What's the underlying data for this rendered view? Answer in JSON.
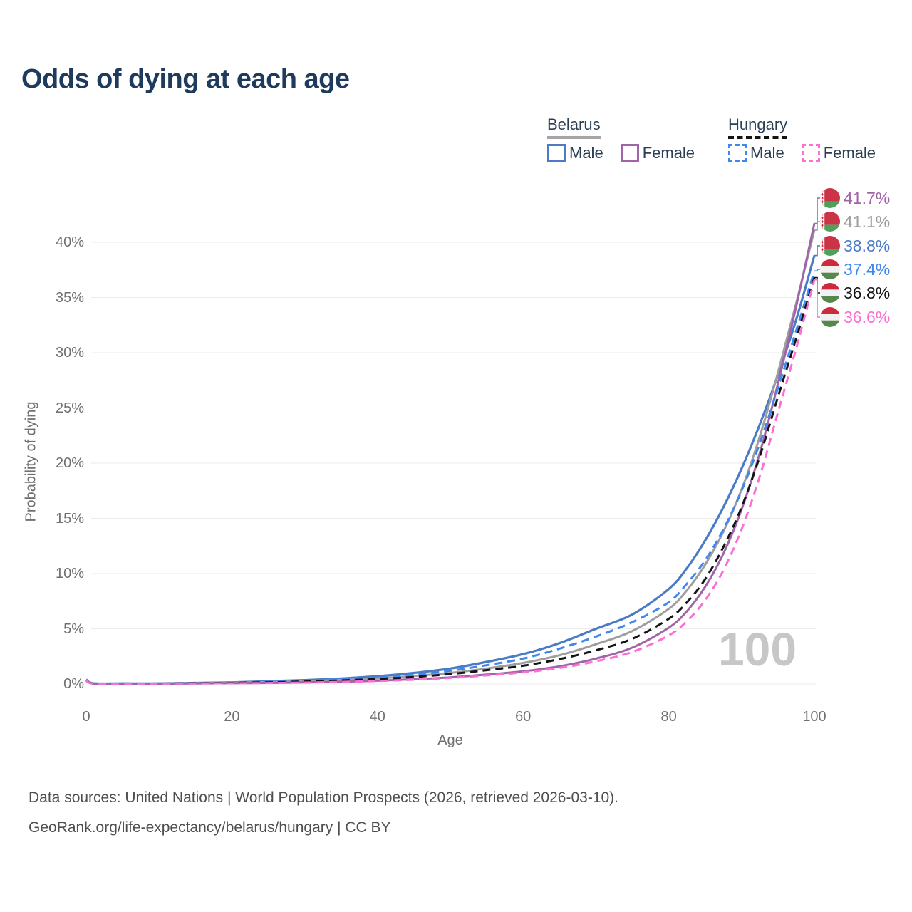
{
  "title": "Odds of dying at each age",
  "legend": {
    "groups": [
      {
        "name": "Belarus",
        "line_style": "solid",
        "underline_color": "#A5A5A5",
        "items": [
          {
            "label": "Male",
            "color": "#4A7BC4",
            "dash": false
          },
          {
            "label": "Female",
            "color": "#A264A8",
            "dash": false
          }
        ]
      },
      {
        "name": "Hungary",
        "line_style": "dashed",
        "underline_color": "#141414",
        "items": [
          {
            "label": "Male",
            "color": "#3E86F0",
            "dash": true
          },
          {
            "label": "Female",
            "color": "#FB6ED3",
            "dash": true
          }
        ]
      }
    ]
  },
  "axes": {
    "y_title": "Probability of dying",
    "x_title": "Age",
    "y_ticks": [
      "0%",
      "5%",
      "10%",
      "15%",
      "20%",
      "25%",
      "30%",
      "35%",
      "40%"
    ],
    "x_ticks": [
      0,
      20,
      40,
      60,
      80,
      100
    ]
  },
  "watermark": "100",
  "end_labels": [
    {
      "text": "41.7%",
      "color": "#A264A8",
      "flag": "belarus",
      "series": "Belarus Female"
    },
    {
      "text": "41.1%",
      "color": "#9E9E9E",
      "flag": "belarus",
      "series": "Belarus Both sexes"
    },
    {
      "text": "38.8%",
      "color": "#4A7BC4",
      "flag": "belarus",
      "series": "Belarus Male"
    },
    {
      "text": "37.4%",
      "color": "#3E86F0",
      "flag": "hungary",
      "series": "Hungary Male"
    },
    {
      "text": "36.8%",
      "color": "#141414",
      "flag": "hungary",
      "series": "Hungary Both sexes"
    },
    {
      "text": "36.6%",
      "color": "#FB6ED3",
      "flag": "hungary",
      "series": "Hungary Female"
    }
  ],
  "footer": {
    "line1": "Data sources: United Nations | World Population Prospects (2026, retrieved 2026-03-10).",
    "line2": "GeoRank.org/life-expectancy/belarus/hungary | CC BY"
  },
  "flag_colors": {
    "belarus": {
      "red": "#CB3346",
      "green": "#4FA05A",
      "white": "#FFFFFF"
    },
    "hungary": {
      "red": "#CE2A3C",
      "white": "#F1F1F3",
      "green": "#56884E"
    }
  },
  "chart_data": {
    "type": "line",
    "title": "Odds of dying at each age",
    "xlabel": "Age",
    "ylabel": "Probability of dying",
    "xlim": [
      0,
      100
    ],
    "ylim_pct": [
      0,
      44
    ],
    "grid": "horizontal",
    "legend_position": "top-right",
    "x_ages": [
      0,
      1,
      5,
      10,
      15,
      20,
      25,
      30,
      35,
      40,
      45,
      50,
      55,
      60,
      65,
      70,
      75,
      80,
      82.5,
      85,
      87.5,
      90,
      92.5,
      95,
      97.5,
      100
    ],
    "series": [
      {
        "name": "Belarus Male",
        "color": "#4A7BC4",
        "dash": false,
        "width": 3.2,
        "end_value_pct": 38.8,
        "values_pct": [
          0.4,
          0.06,
          0.05,
          0.05,
          0.1,
          0.15,
          0.25,
          0.35,
          0.5,
          0.7,
          1.0,
          1.4,
          2.0,
          2.7,
          3.7,
          5.0,
          6.3,
          8.6,
          10.5,
          13.0,
          16.0,
          19.5,
          23.5,
          28.0,
          33.0,
          38.8
        ]
      },
      {
        "name": "Belarus Both sexes",
        "color": "#9E9E9E",
        "dash": false,
        "width": 3,
        "end_value_pct": 41.1,
        "values_pct": [
          0.35,
          0.05,
          0.04,
          0.04,
          0.08,
          0.11,
          0.17,
          0.25,
          0.36,
          0.5,
          0.72,
          1.0,
          1.4,
          1.9,
          2.6,
          3.6,
          4.8,
          6.8,
          8.5,
          10.8,
          13.8,
          17.6,
          22.4,
          28.2,
          34.5,
          41.1
        ]
      },
      {
        "name": "Belarus Female",
        "color": "#A264A8",
        "dash": false,
        "width": 3,
        "end_value_pct": 41.7,
        "values_pct": [
          0.3,
          0.04,
          0.03,
          0.03,
          0.05,
          0.07,
          0.1,
          0.14,
          0.2,
          0.3,
          0.43,
          0.6,
          0.85,
          1.15,
          1.6,
          2.3,
          3.3,
          5.1,
          6.6,
          8.8,
          11.8,
          15.8,
          20.9,
          27.2,
          34.2,
          41.7
        ]
      },
      {
        "name": "Hungary Male",
        "color": "#3E86F0",
        "dash": true,
        "width": 3,
        "end_value_pct": 37.4,
        "values_pct": [
          0.35,
          0.05,
          0.04,
          0.04,
          0.08,
          0.12,
          0.2,
          0.3,
          0.45,
          0.6,
          0.85,
          1.2,
          1.7,
          2.3,
          3.2,
          4.3,
          5.6,
          7.4,
          9.1,
          11.2,
          14.0,
          17.5,
          21.8,
          26.8,
          32.0,
          37.4
        ]
      },
      {
        "name": "Hungary Both sexes",
        "color": "#141414",
        "dash": true,
        "width": 3,
        "end_value_pct": 36.8,
        "values_pct": [
          0.3,
          0.04,
          0.03,
          0.03,
          0.07,
          0.1,
          0.15,
          0.22,
          0.32,
          0.45,
          0.63,
          0.9,
          1.25,
          1.65,
          2.25,
          3.05,
          4.1,
          5.9,
          7.4,
          9.5,
          12.4,
          16.0,
          20.6,
          26.0,
          31.3,
          36.8
        ]
      },
      {
        "name": "Hungary Female",
        "color": "#FB6ED3",
        "dash": true,
        "width": 3,
        "end_value_pct": 36.6,
        "values_pct": [
          0.28,
          0.04,
          0.03,
          0.03,
          0.05,
          0.07,
          0.09,
          0.13,
          0.19,
          0.27,
          0.39,
          0.55,
          0.78,
          1.05,
          1.45,
          2.05,
          2.9,
          4.4,
          5.7,
          7.6,
          10.3,
          14.0,
          18.8,
          24.6,
          30.4,
          36.6
        ]
      }
    ]
  }
}
